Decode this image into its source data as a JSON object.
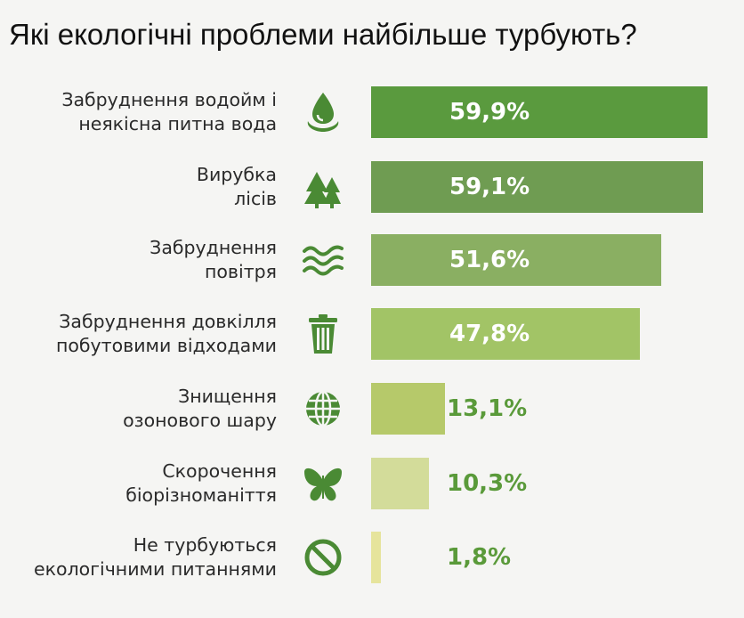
{
  "title": "Які екологічні проблеми найбільше турбують?",
  "chart_data": {
    "type": "bar",
    "orientation": "horizontal",
    "unit": "%",
    "xlim": [
      0,
      60
    ],
    "rows": [
      {
        "line1": "Забруднення водойм і",
        "line2": "неякісна питна вода",
        "value": 59.9,
        "display": "59,9%",
        "icon": "water-drop-icon",
        "color": "#5a9a3e",
        "label_inside": true
      },
      {
        "line1": "Вирубка",
        "line2": "лісів",
        "value": 59.1,
        "display": "59,1%",
        "icon": "trees-icon",
        "color": "#6f9c52",
        "label_inside": true
      },
      {
        "line1": "Забруднення",
        "line2": "повітря",
        "value": 51.6,
        "display": "51,6%",
        "icon": "air-waves-icon",
        "color": "#8aaf62",
        "label_inside": true
      },
      {
        "line1": "Забруднення довкілля",
        "line2": "побутовими відходами",
        "value": 47.8,
        "display": "47,8%",
        "icon": "trash-bin-icon",
        "color": "#a2c466",
        "label_inside": true
      },
      {
        "line1": "Знищення",
        "line2": "озонового шару",
        "value": 13.1,
        "display": "13,1%",
        "icon": "globe-icon",
        "color": "#b6c96a",
        "label_inside": false
      },
      {
        "line1": "Скорочення",
        "line2": "біорізноманіття",
        "value": 10.3,
        "display": "10,3%",
        "icon": "butterfly-icon",
        "color": "#d3dc9a",
        "label_inside": false
      },
      {
        "line1": "Не турбуються",
        "line2": "екологічними питаннями",
        "value": 1.8,
        "display": "1,8%",
        "icon": "no-sign-icon",
        "color": "#e6e49c",
        "label_inside": false
      }
    ]
  },
  "colors": {
    "icon": "#4a8a34",
    "value_outside": "#5a9a3a"
  }
}
